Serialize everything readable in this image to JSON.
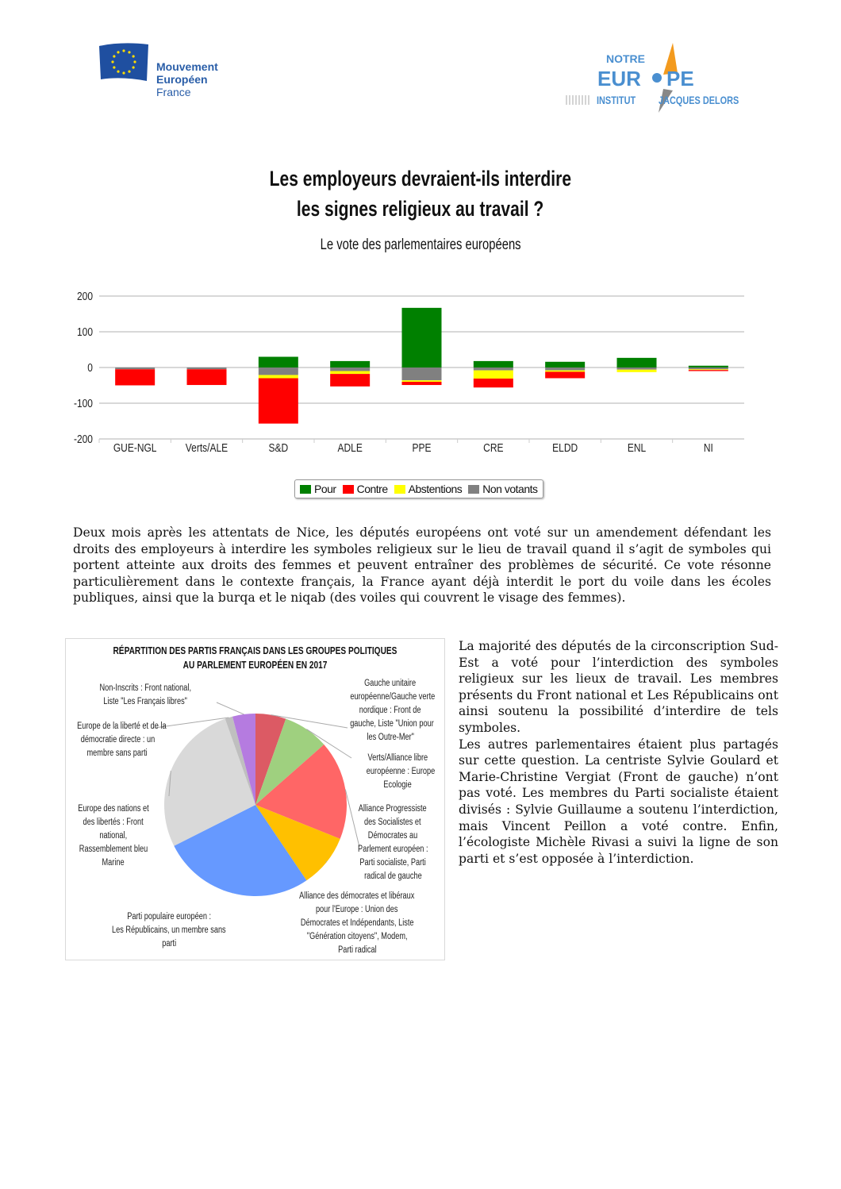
{
  "logos": {
    "left": {
      "lines": [
        "Mouvement",
        "Européen",
        "France"
      ],
      "color": "#2a5ea8",
      "flag_color": "#1f4fa0"
    },
    "right": {
      "top": "NOTRE",
      "main_left": "EUR",
      "main_right": "PE",
      "bottom_left": "INSTITUT",
      "bottom_right": "JACQUES DELORS",
      "color": "#4a8fd0",
      "accent": "#f39a1e"
    }
  },
  "title": {
    "line1": "Les employeurs devraient-ils interdire",
    "line2": "les signes religieux au travail ?"
  },
  "subtitle": "Le vote des parlementaires européens",
  "chart_data": [
    {
      "type": "bar",
      "stacked": true,
      "categories": [
        "GUE-NGL",
        "Verts/ALE",
        "S&D",
        "ADLE",
        "PPE",
        "CRE",
        "ELDD",
        "ENL",
        "NI"
      ],
      "series": [
        {
          "name": "Pour",
          "color": "#008000",
          "values": [
            0,
            0,
            30,
            18,
            167,
            18,
            16,
            27,
            5
          ]
        },
        {
          "name": "Contre",
          "color": "#ff0000",
          "values": [
            45,
            44,
            127,
            35,
            9,
            25,
            18,
            0,
            3
          ]
        },
        {
          "name": "Abstentions",
          "color": "#ffff00",
          "values": [
            0,
            0,
            9,
            8,
            4,
            23,
            4,
            7,
            2
          ]
        },
        {
          "name": "Non votants",
          "color": "#808080",
          "values": [
            5,
            5,
            21,
            10,
            36,
            8,
            8,
            6,
            5
          ]
        }
      ],
      "note": "Contre, Abstentions and Non votants drawn below zero",
      "yticks": [
        "200",
        "100",
        "0",
        "-100",
        "-200"
      ],
      "ylim": [
        -200,
        200
      ],
      "grid": true,
      "legend": "bottom"
    },
    {
      "type": "pie",
      "title_line1": "RÉPARTITION DES PARTIS FRANÇAIS DANS LES GROUPES POLITIQUES",
      "title_line2": "AU PARLEMENT EUROPÉEN EN 2017",
      "slices": [
        {
          "label": [
            "Gauche unitaire",
            "européenne/Gauche verte",
            "nordique : Front de",
            "gauche, Liste \"Union pour",
            "les Outre-Mer\""
          ],
          "value": 4,
          "color": "#dc5a64"
        },
        {
          "label": [
            "Verts/Alliance libre",
            "européenne : Europe",
            "Ecologie"
          ],
          "value": 6,
          "color": "#9fd07f"
        },
        {
          "label": [
            "Alliance Progressiste",
            "des Socialistes et",
            "Démocrates au",
            "Parlement européen :",
            "Parti socialiste, Parti",
            "radical de gauche"
          ],
          "value": 13,
          "color": "#ff6666"
        },
        {
          "label": [
            "Alliance des démocrates et libéraux",
            "pour l'Europe : Union des",
            "Démocrates et Indépendants, Liste",
            "\"Génération citoyens\", Modem,",
            "Parti radical"
          ],
          "value": 7,
          "color": "#ffc000"
        },
        {
          "label": [
            "Parti populaire européen :",
            "Les Républicains, un membre sans",
            "parti"
          ],
          "value": 20,
          "color": "#6699ff"
        },
        {
          "label": [
            "Europe des nations et",
            "des libertés : Front",
            "national,",
            "Rassemblement bleu",
            "Marine"
          ],
          "value": 20,
          "color": "#d9d9d9"
        },
        {
          "label": [
            "Europe de la liberté et de la",
            "démocratie directe : un",
            "membre sans parti"
          ],
          "value": 1,
          "color": "#bfbfbf"
        },
        {
          "label": [
            "Non-Inscrits : Front national,",
            "Liste \"Les Français libres\""
          ],
          "value": 3,
          "color": "#b57be0"
        }
      ]
    }
  ],
  "paragraph1": "Deux mois après les attentats de Nice, les députés européens ont voté sur un amendement défendant les droits des employeurs à interdire les symboles religieux sur le lieu de travail quand il s’agit de symboles qui portent atteinte aux droits des femmes et peuvent entraîner des problèmes de sécurité. Ce vote résonne particulièrement dans le contexte français, la France ayant déjà interdit le port du voile dans les écoles publiques, ainsi que la burqa et le niqab (des voiles qui couvrent le visage des femmes).",
  "paragraph2a": "La majorité des députés de la circonscription Sud-Est a voté pour l’interdiction des symboles religieux sur les lieux de travail. Les membres présents du Front national et Les Républicains ont ainsi soutenu la possibilité d’interdire de tels symboles.",
  "paragraph2b": "Les autres parlementaires étaient plus partagés sur cette question. La centriste Sylvie Goulard et Marie-Christine Vergiat (Front de gauche) n’ont pas voté. Les membres du Parti socialiste étaient divisés : Sylvie Guillaume a soutenu l’interdiction, mais Vincent Peillon a voté contre. Enfin, l’écologiste Michèle Rivasi a suivi la ligne de son parti et s’est opposée à l’interdiction."
}
